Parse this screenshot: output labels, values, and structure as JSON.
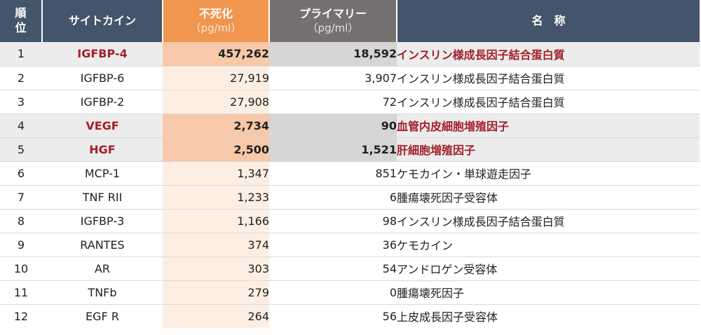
{
  "header": {
    "rank_label": "順\n位",
    "cytokine_label": "サイトカイン",
    "immortal_label": "不死化",
    "immortal_unit": "（pg/ml）",
    "primary_label": "プライマリー",
    "primary_unit": "（pg/ml）",
    "name_label": "名　称"
  },
  "colors": {
    "header_navy": "#44546a",
    "header_orange": "#f0964f",
    "header_gray": "#767171",
    "highlight_text": "#a3202a",
    "immortal_cell": "#fdeee3",
    "immortal_cell_highlight": "#f7c9a8",
    "primary_cell_highlight": "#d6d6d6"
  },
  "rows": [
    {
      "rank": "1",
      "cytokine": "IGFBP-4",
      "immortal": "457,262",
      "primary": "18,592",
      "name": "インスリン様成長因子結合蛋白質",
      "highlight": true
    },
    {
      "rank": "2",
      "cytokine": "IGFBP-6",
      "immortal": "27,919",
      "primary": "3,907",
      "name": "インスリン様成長因子結合蛋白質",
      "highlight": false
    },
    {
      "rank": "3",
      "cytokine": "IGFBP-2",
      "immortal": "27,908",
      "primary": "72",
      "name": "インスリン様成長因子結合蛋白質",
      "highlight": false
    },
    {
      "rank": "4",
      "cytokine": "VEGF",
      "immortal": "2,734",
      "primary": "90",
      "name": "血管内皮細胞増殖因子",
      "highlight": true
    },
    {
      "rank": "5",
      "cytokine": "HGF",
      "immortal": "2,500",
      "primary": "1,521",
      "name": "肝細胞増殖因子",
      "highlight": true
    },
    {
      "rank": "6",
      "cytokine": "MCP-1",
      "immortal": "1,347",
      "primary": "851",
      "name": "ケモカイン・単球遊走因子",
      "highlight": false
    },
    {
      "rank": "7",
      "cytokine": "TNF RII",
      "immortal": "1,233",
      "primary": "6",
      "name": "腫瘍壊死因子受容体",
      "highlight": false
    },
    {
      "rank": "8",
      "cytokine": "IGFBP-3",
      "immortal": "1,166",
      "primary": "98",
      "name": "インスリン様成長因子結合蛋白質",
      "highlight": false
    },
    {
      "rank": "9",
      "cytokine": "RANTES",
      "immortal": "374",
      "primary": "36",
      "name": "ケモカイン",
      "highlight": false
    },
    {
      "rank": "10",
      "cytokine": "AR",
      "immortal": "303",
      "primary": "54",
      "name": "アンドロゲン受容体",
      "highlight": false
    },
    {
      "rank": "11",
      "cytokine": "TNFb",
      "immortal": "279",
      "primary": "0",
      "name": "腫瘍壊死因子",
      "highlight": false
    },
    {
      "rank": "12",
      "cytokine": "EGF R",
      "immortal": "264",
      "primary": "56",
      "name": "上皮成長因子受容体",
      "highlight": false
    }
  ]
}
